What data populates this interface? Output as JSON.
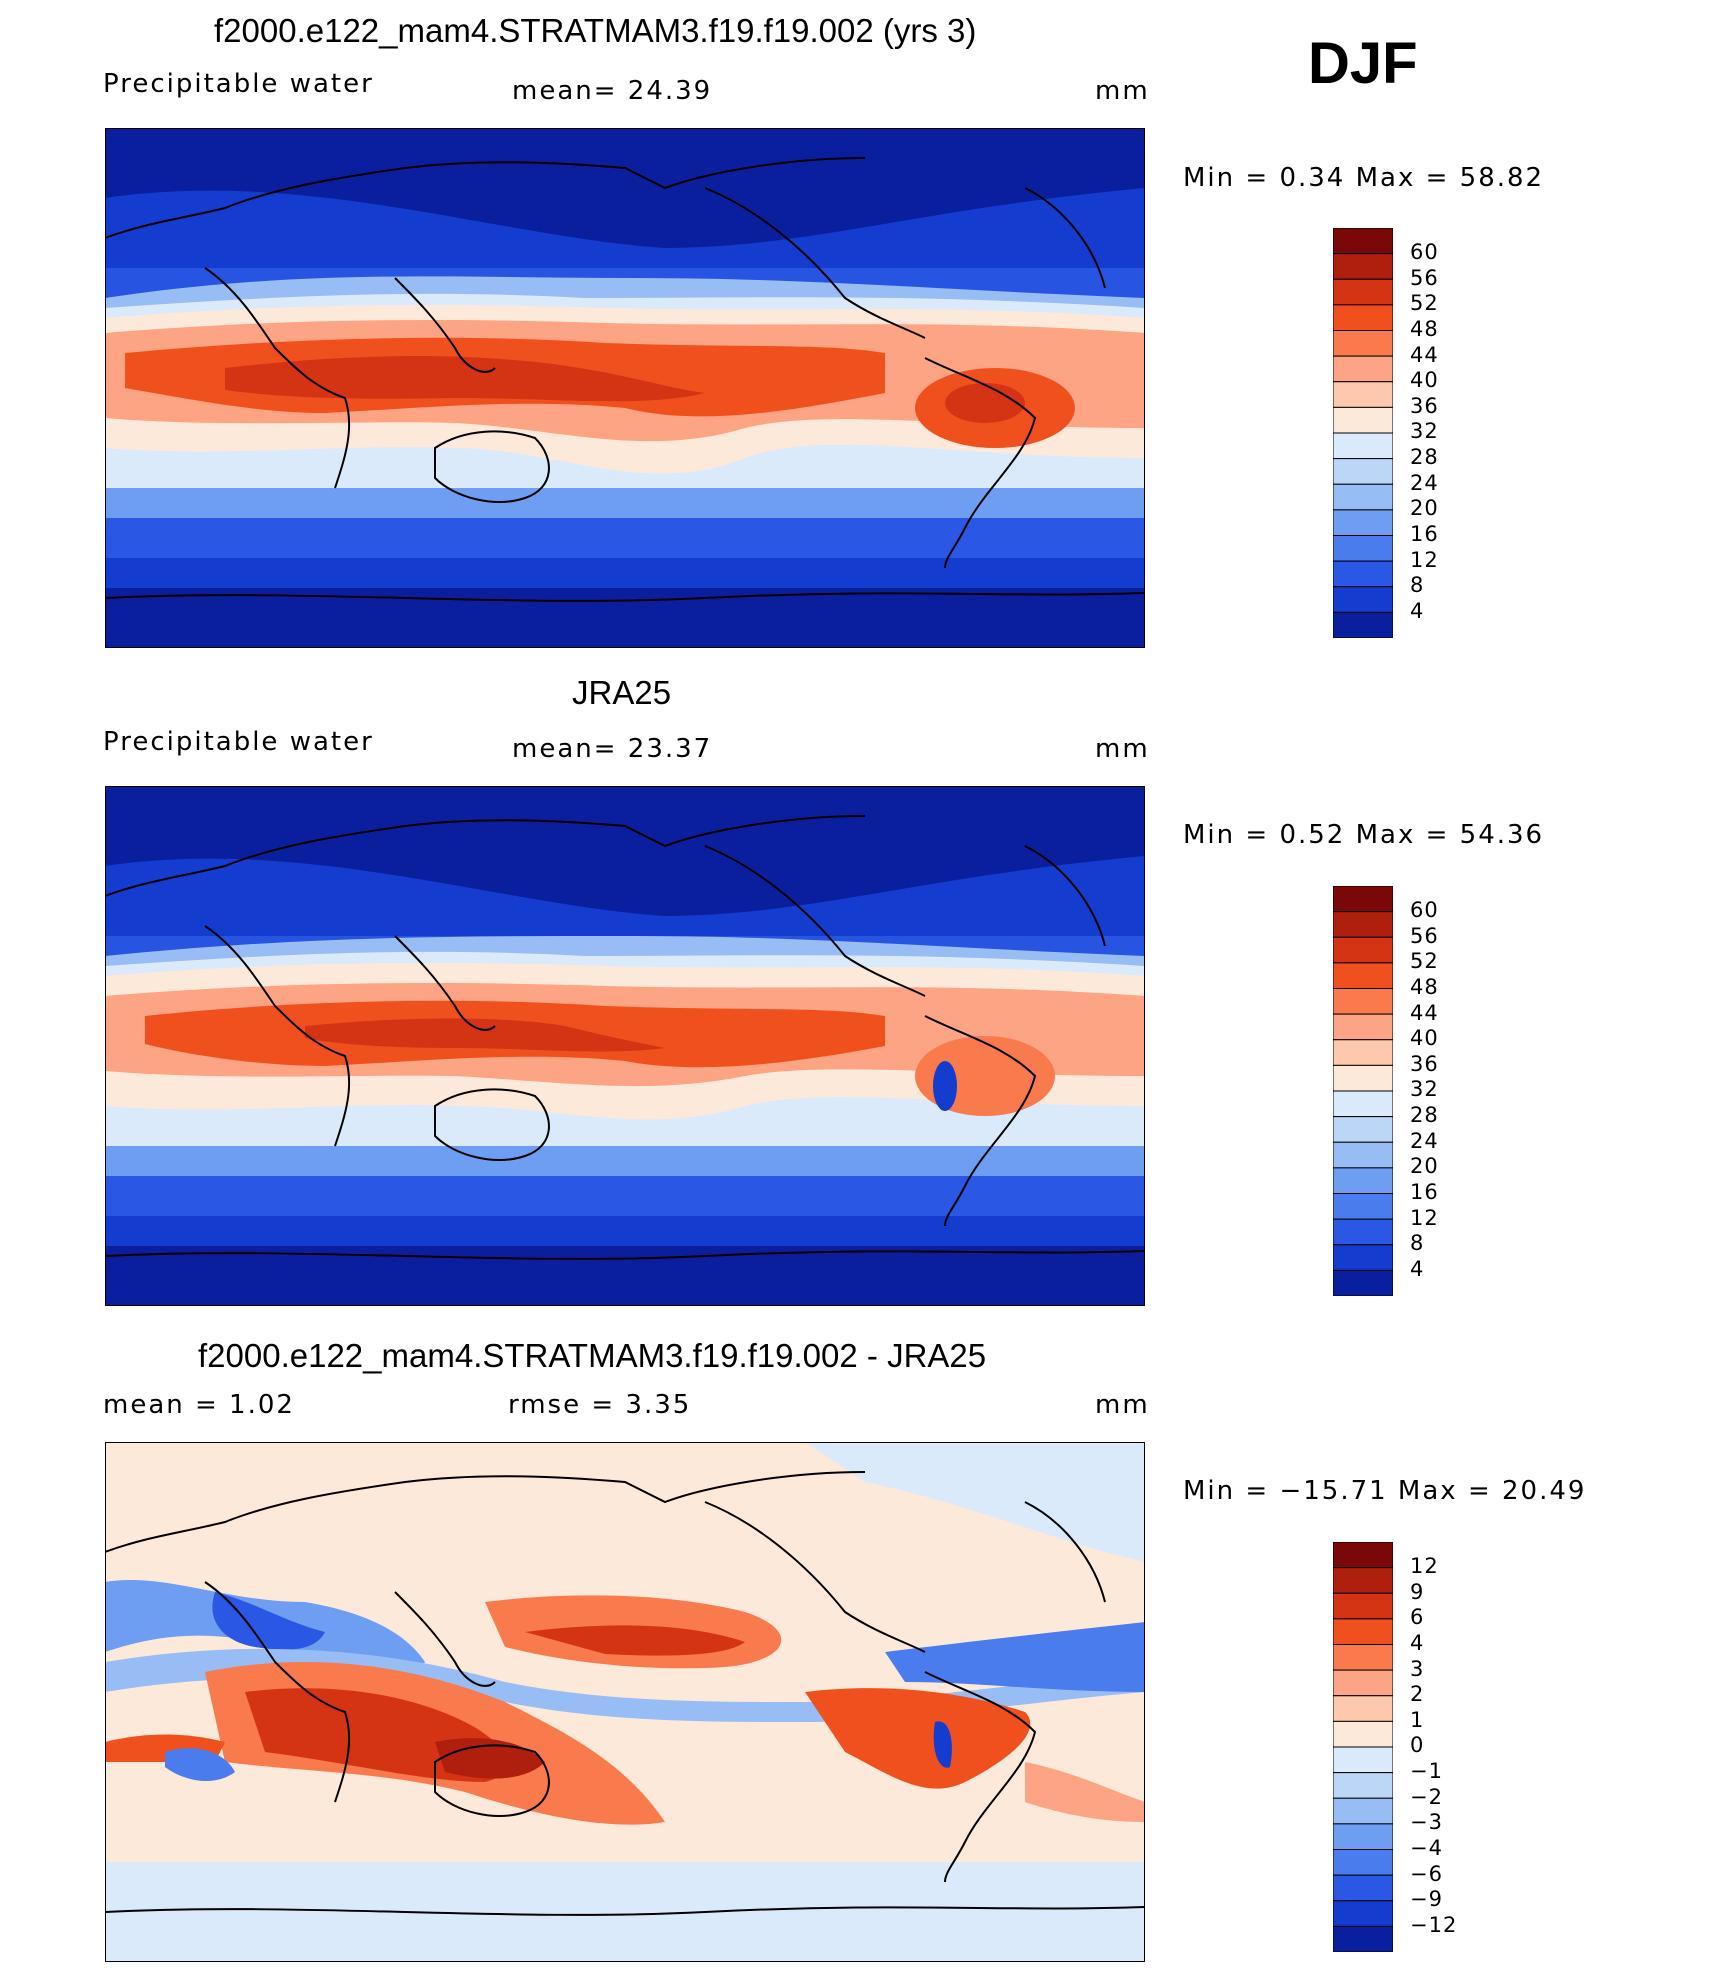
{
  "season": "DJF",
  "panels": [
    {
      "title": "f2000.e122_mam4.STRATMAM3.f19.f19.002 (yrs 3)",
      "left_label": "Precipitable  water",
      "center_label": "mean=   24.39",
      "units": "mm",
      "minmax": "Min  =     0.34  Max  =    58.82",
      "levels": [
        "60",
        "56",
        "52",
        "48",
        "44",
        "40",
        "36",
        "32",
        "28",
        "24",
        "20",
        "16",
        "12",
        "8",
        "4"
      ],
      "colors": [
        "#7a0808",
        "#b01e0e",
        "#d53414",
        "#f0501e",
        "#f97a4c",
        "#fca483",
        "#fdc8ab",
        "#fde9da",
        "#dbeafa",
        "#bcd6f7",
        "#98bcf4",
        "#6e9ef1",
        "#4a7ced",
        "#2a57e3",
        "#143ccf",
        "#0a1f9e"
      ]
    },
    {
      "title": "JRA25",
      "left_label": "Precipitable  water",
      "center_label": "mean=   23.37",
      "units": "mm",
      "minmax": "Min  =     0.52  Max  =    54.36",
      "levels": [
        "60",
        "56",
        "52",
        "48",
        "44",
        "40",
        "36",
        "32",
        "28",
        "24",
        "20",
        "16",
        "12",
        "8",
        "4"
      ],
      "colors": [
        "#7a0808",
        "#b01e0e",
        "#d53414",
        "#f0501e",
        "#f97a4c",
        "#fca483",
        "#fdc8ab",
        "#fde9da",
        "#dbeafa",
        "#bcd6f7",
        "#98bcf4",
        "#6e9ef1",
        "#4a7ced",
        "#2a57e3",
        "#143ccf",
        "#0a1f9e"
      ]
    },
    {
      "title": "f2000.e122_mam4.STRATMAM3.f19.f19.002 - JRA25",
      "left_label": "mean  =      1.02",
      "center_label": "rmse  =      3.35",
      "units": "mm",
      "minmax": "Min  = −15.71  Max  =    20.49",
      "levels": [
        "12",
        "9",
        "6",
        "4",
        "3",
        "2",
        "1",
        "0",
        "−1",
        "−2",
        "−3",
        "−4",
        "−6",
        "−9",
        "−12"
      ],
      "colors": [
        "#7a0808",
        "#b01e0e",
        "#d53414",
        "#f0501e",
        "#f97a4c",
        "#fca483",
        "#fdc8ab",
        "#fde9da",
        "#dbeafa",
        "#bcd6f7",
        "#98bcf4",
        "#6e9ef1",
        "#4a7ced",
        "#2a57e3",
        "#143ccf",
        "#0a1f9e"
      ]
    }
  ]
}
